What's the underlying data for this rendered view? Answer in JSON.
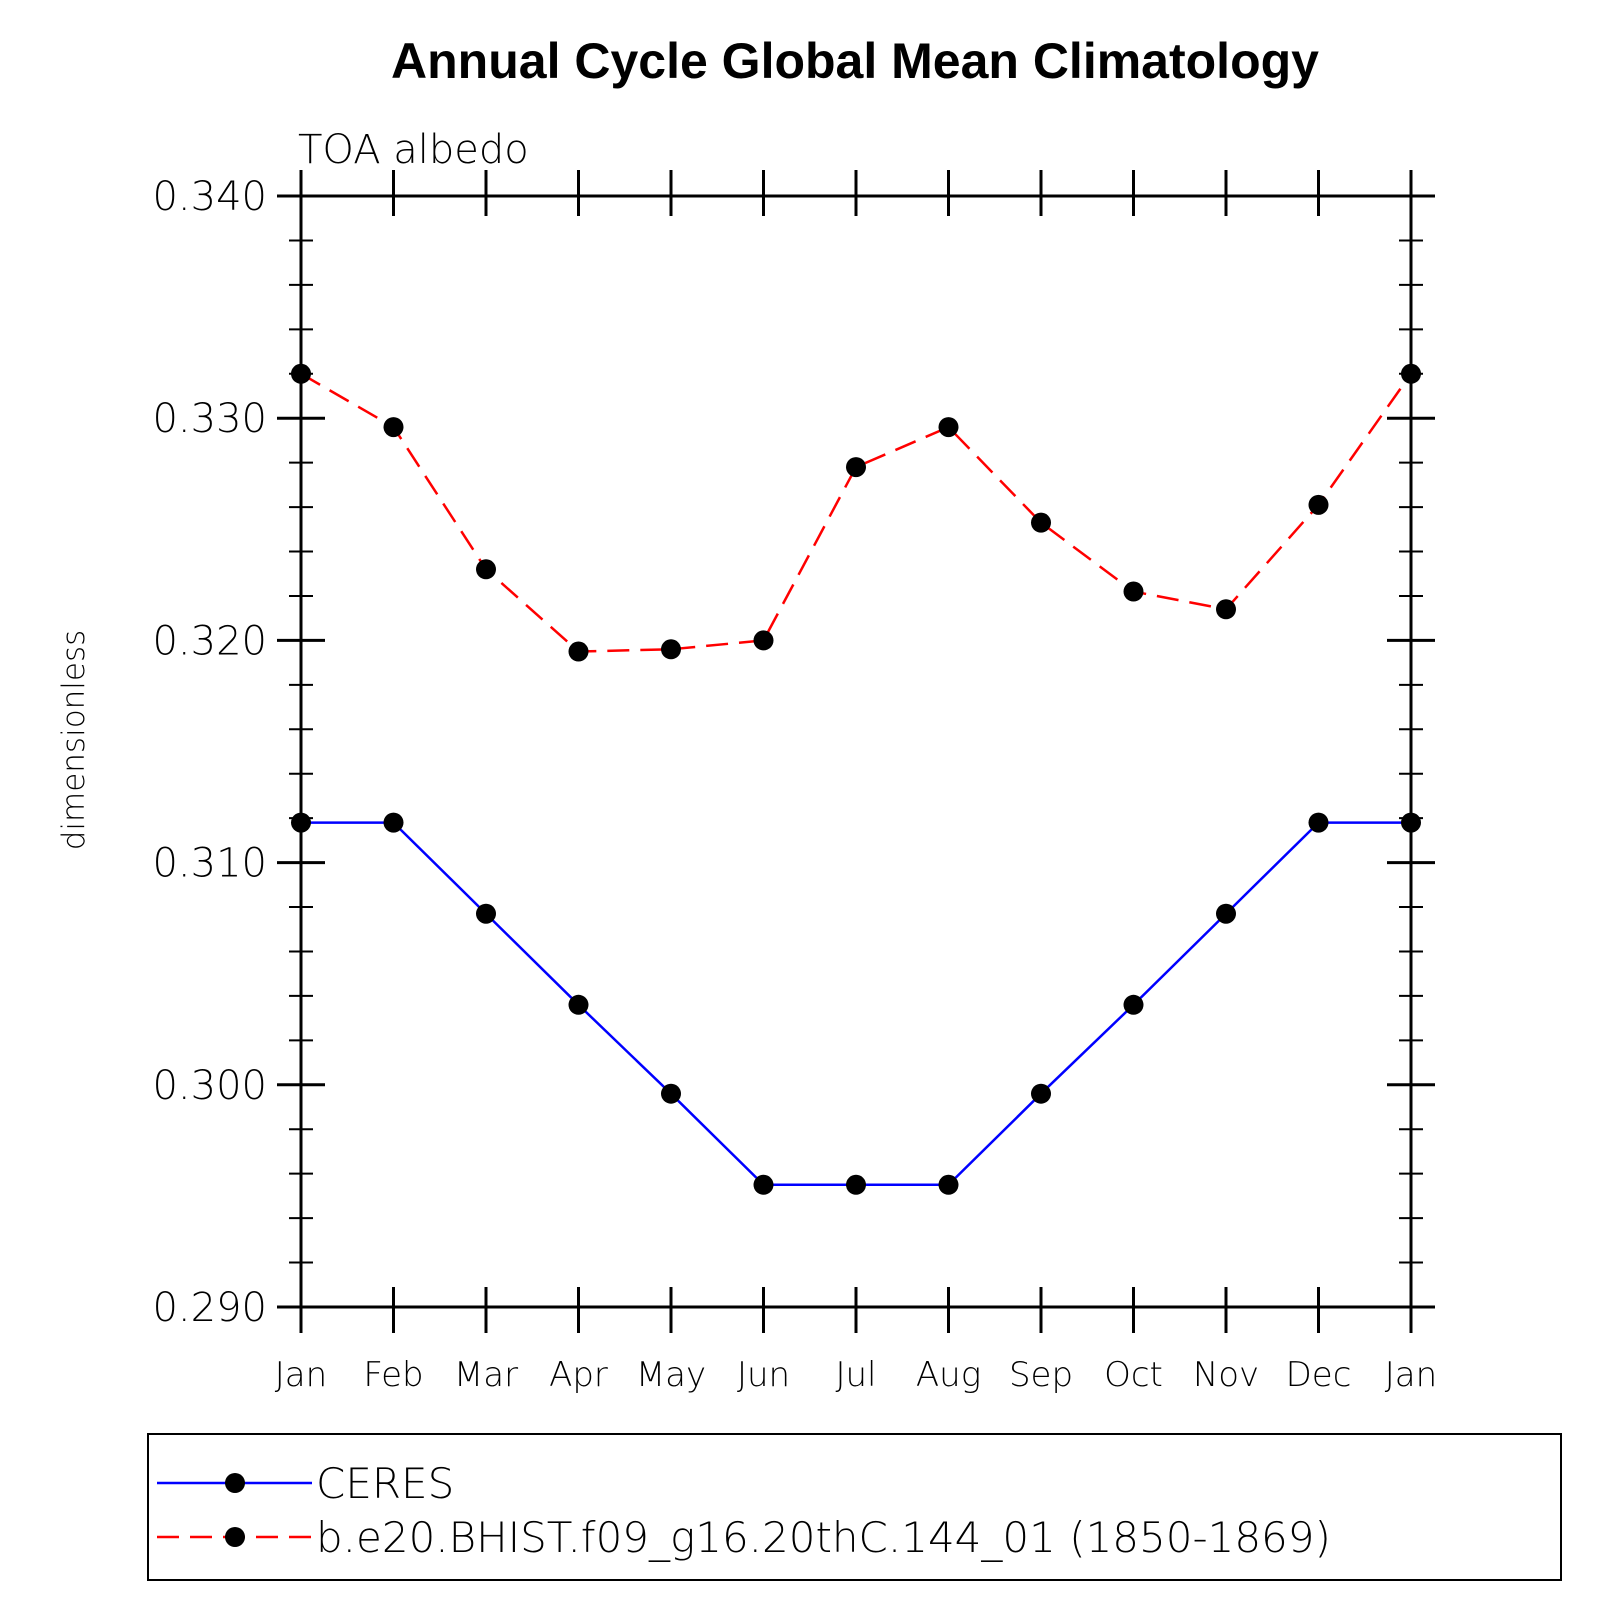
{
  "chart_data": {
    "type": "line",
    "title": "Annual Cycle Global Mean Climatology",
    "subtitle": "TOA albedo",
    "ylabel": "dimensionless",
    "xlabel": "",
    "categories": [
      "Jan",
      "Feb",
      "Mar",
      "Apr",
      "May",
      "Jun",
      "Jul",
      "Aug",
      "Sep",
      "Oct",
      "Nov",
      "Dec",
      "Jan"
    ],
    "ylim": [
      0.29,
      0.34
    ],
    "yticks": [
      "0.290",
      "0.300",
      "0.310",
      "0.320",
      "0.330",
      "0.340"
    ],
    "series": [
      {
        "name": "CERES",
        "color": "#0000ff",
        "dash": "solid",
        "values": [
          0.3118,
          0.3118,
          0.3077,
          0.3036,
          0.2996,
          0.2955,
          0.2955,
          0.2955,
          0.2996,
          0.3036,
          0.3077,
          0.3118,
          0.3118
        ]
      },
      {
        "name": "b.e20.BHIST.f09_g16.20thC.144_01 (1850-1869)",
        "color": "#ff0000",
        "dash": "dashed",
        "values": [
          0.332,
          0.3296,
          0.3232,
          0.3195,
          0.3196,
          0.32,
          0.3278,
          0.3296,
          0.3253,
          0.3222,
          0.3214,
          0.3261,
          0.332
        ]
      }
    ],
    "marker": "filled-circle",
    "marker_color": "#000000",
    "legend_position": "bottom"
  }
}
